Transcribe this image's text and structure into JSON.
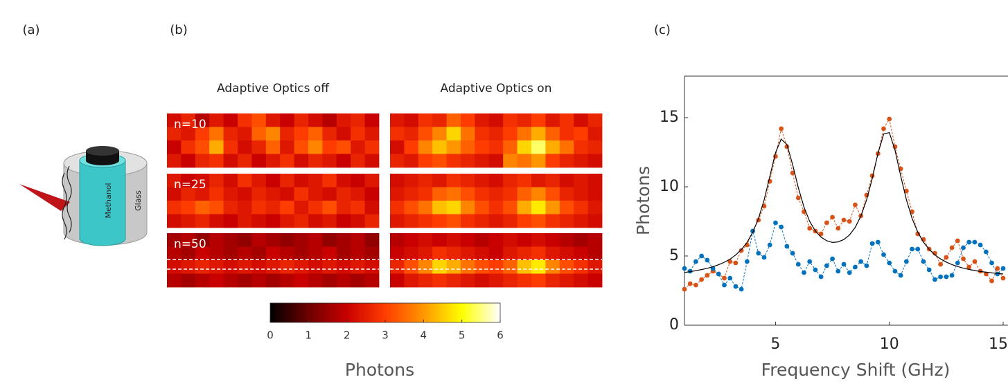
{
  "figure": {
    "panel_a": {
      "label": "(a)",
      "liquid_label": "Methanol",
      "vessel_label": "Glass"
    }
  },
  "chart_data": [
    {
      "type": "heatmap",
      "panel_label": "(b)",
      "columns": [
        "Adaptive Optics off",
        "Adaptive Optics on"
      ],
      "rows": [
        "n=10",
        "n=25",
        "n=50"
      ],
      "grids": [
        [
          [
            [
              2.2,
              2.6,
              1.8,
              2.4,
              2.0,
              2.8,
              3.2,
              2.4,
              2.0,
              2.6,
              2.2,
              1.8,
              2.4,
              2.6,
              2.0
            ],
            [
              2.6,
              2.4,
              3.0,
              3.6,
              2.6,
              2.4,
              3.4,
              3.8,
              2.6,
              3.0,
              3.4,
              2.6,
              2.2,
              2.8,
              2.4
            ],
            [
              2.0,
              2.8,
              3.2,
              4.2,
              2.8,
              2.2,
              2.6,
              3.4,
              2.4,
              3.2,
              3.8,
              3.0,
              3.2,
              2.4,
              2.8
            ],
            [
              2.4,
              2.0,
              2.6,
              2.8,
              2.2,
              2.6,
              2.0,
              2.4,
              2.8,
              2.2,
              2.6,
              2.4,
              2.0,
              2.6,
              2.2
            ]
          ],
          [
            [
              2.4,
              2.2,
              2.8,
              2.6,
              3.4,
              3.0,
              2.4,
              2.2,
              2.8,
              2.6,
              3.0,
              2.4,
              2.8,
              2.2,
              2.6
            ],
            [
              2.8,
              2.6,
              3.2,
              3.8,
              4.6,
              3.6,
              2.8,
              2.6,
              3.0,
              3.6,
              4.2,
              3.4,
              2.8,
              3.0,
              2.4
            ],
            [
              2.2,
              3.0,
              3.8,
              4.4,
              4.0,
              3.4,
              3.0,
              2.8,
              3.4,
              4.6,
              5.4,
              4.2,
              3.6,
              2.8,
              2.6
            ],
            [
              2.6,
              2.4,
              3.0,
              3.2,
              2.8,
              2.6,
              2.4,
              2.2,
              3.8,
              3.6,
              4.0,
              3.0,
              2.6,
              2.4,
              2.2
            ]
          ]
        ],
        [
          [
            [
              2.4,
              2.0,
              2.2,
              2.6,
              2.2,
              2.8,
              2.4,
              2.0,
              2.6,
              2.2,
              2.4,
              2.8,
              2.2,
              2.0,
              2.4
            ],
            [
              2.2,
              2.6,
              2.4,
              2.8,
              2.4,
              2.2,
              2.6,
              2.4,
              2.2,
              2.8,
              2.4,
              2.2,
              2.6,
              2.4,
              2.0
            ],
            [
              2.8,
              3.0,
              3.4,
              3.2,
              2.6,
              2.4,
              2.8,
              2.6,
              3.0,
              2.4,
              2.8,
              3.2,
              2.6,
              2.8,
              2.2
            ],
            [
              2.2,
              2.4,
              2.6,
              2.2,
              2.0,
              2.4,
              2.2,
              2.0,
              2.4,
              2.6,
              2.2,
              2.4,
              2.0,
              2.2,
              2.6
            ]
          ],
          [
            [
              2.2,
              2.4,
              2.6,
              2.4,
              2.8,
              2.6,
              2.4,
              2.2,
              2.6,
              2.8,
              2.4,
              2.6,
              2.2,
              2.4,
              2.2
            ],
            [
              2.4,
              2.6,
              2.8,
              3.4,
              3.6,
              3.2,
              2.8,
              2.6,
              2.8,
              3.4,
              3.8,
              3.2,
              2.6,
              2.4,
              2.2
            ],
            [
              2.8,
              3.2,
              3.6,
              4.4,
              4.6,
              3.8,
              3.2,
              2.8,
              3.2,
              4.2,
              4.8,
              4.0,
              3.2,
              2.8,
              2.4
            ],
            [
              2.4,
              2.6,
              2.8,
              3.0,
              3.2,
              2.8,
              2.6,
              2.4,
              2.6,
              3.0,
              3.2,
              2.8,
              2.6,
              2.4,
              2.2
            ]
          ]
        ],
        [
          [
            [
              1.6,
              1.8,
              1.4,
              1.8,
              1.6,
              1.4,
              1.8,
              1.6,
              1.4,
              1.6,
              1.8,
              1.4,
              1.6,
              1.8,
              1.4
            ],
            [
              1.8,
              1.6,
              2.0,
              1.8,
              1.6,
              1.8,
              1.6,
              2.0,
              1.8,
              1.6,
              1.8,
              2.0,
              1.6,
              1.8,
              1.6
            ],
            [
              2.2,
              2.4,
              2.6,
              2.4,
              2.2,
              2.4,
              2.2,
              2.4,
              2.6,
              2.4,
              2.2,
              2.4,
              2.2,
              2.4,
              2.2
            ],
            [
              1.8,
              1.6,
              1.8,
              2.0,
              1.8,
              1.6,
              1.8,
              1.6,
              1.8,
              2.0,
              1.8,
              1.6,
              1.8,
              1.6,
              1.8
            ]
          ],
          [
            [
              1.8,
              2.0,
              2.2,
              2.0,
              2.2,
              2.0,
              1.8,
              2.0,
              2.2,
              2.0,
              2.2,
              2.0,
              1.8,
              1.6,
              1.8
            ],
            [
              2.0,
              2.2,
              2.4,
              2.8,
              2.6,
              2.4,
              2.2,
              2.0,
              2.4,
              2.6,
              2.8,
              2.4,
              2.2,
              2.0,
              1.8
            ],
            [
              2.6,
              3.2,
              3.8,
              4.6,
              4.2,
              3.6,
              3.2,
              3.0,
              3.4,
              4.4,
              4.8,
              3.8,
              3.2,
              2.8,
              2.4
            ],
            [
              2.0,
              2.4,
              2.6,
              2.8,
              2.6,
              2.4,
              2.2,
              2.4,
              2.6,
              2.8,
              3.0,
              2.6,
              2.4,
              2.2,
              2.0
            ]
          ]
        ]
      ],
      "colormap": [
        "#000000",
        "#6e0000",
        "#c80000",
        "#ff3c00",
        "#ff9600",
        "#ffff00",
        "#ffffff"
      ],
      "clim": [
        0,
        6
      ],
      "colorbar_ticks": [
        0,
        1,
        2,
        3,
        4,
        5,
        6
      ],
      "colorbar_label": "Photons"
    },
    {
      "type": "line",
      "panel_label": "(c)",
      "xlabel": "Frequency Shift (GHz)",
      "ylabel": "Photons",
      "xlim": [
        1,
        15
      ],
      "ylim": [
        0,
        18
      ],
      "xticks": [
        5,
        10,
        15
      ],
      "yticks": [
        0,
        5,
        10,
        15
      ],
      "x": [
        1,
        1.25,
        1.5,
        1.75,
        2,
        2.25,
        2.5,
        2.75,
        3,
        3.25,
        3.5,
        3.75,
        4,
        4.25,
        4.5,
        4.75,
        5,
        5.25,
        5.5,
        5.75,
        6,
        6.25,
        6.5,
        6.75,
        7,
        7.25,
        7.5,
        7.75,
        8,
        8.25,
        8.5,
        8.75,
        9,
        9.25,
        9.5,
        9.75,
        10,
        10.25,
        10.5,
        10.75,
        11,
        11.25,
        11.5,
        11.75,
        12,
        12.25,
        12.5,
        12.75,
        13,
        13.25,
        13.5,
        13.75,
        14,
        14.25,
        14.5,
        14.75,
        15
      ],
      "series": [
        {
          "color": "#d95319",
          "markers": true,
          "dashed": true,
          "values": [
            2.6,
            3.0,
            2.9,
            3.3,
            3.6,
            3.9,
            3.7,
            3.4,
            4.6,
            4.5,
            5.4,
            5.8,
            6.8,
            7.6,
            8.6,
            10.4,
            12.2,
            14.2,
            12.9,
            11.0,
            9.2,
            8.2,
            7.0,
            6.8,
            6.6,
            7.4,
            7.8,
            7.0,
            7.6,
            7.5,
            8.7,
            7.9,
            9.4,
            10.8,
            12.4,
            14.2,
            14.9,
            12.9,
            11.3,
            9.7,
            8.2,
            6.6,
            6.2,
            5.5,
            5.2,
            4.4,
            4.9,
            5.6,
            6.1,
            4.8,
            4.2,
            4.6,
            3.9,
            3.7,
            3.2,
            4.1,
            3.4
          ]
        },
        {
          "color": "#0072bd",
          "markers": true,
          "dashed": true,
          "values": [
            4.1,
            3.9,
            4.6,
            5.0,
            4.7,
            4.1,
            3.7,
            2.9,
            3.4,
            2.8,
            2.6,
            4.6,
            6.8,
            5.2,
            4.9,
            5.8,
            7.4,
            7.1,
            5.7,
            5.2,
            4.4,
            3.8,
            4.6,
            4.0,
            3.5,
            4.3,
            4.8,
            3.9,
            4.4,
            3.8,
            4.2,
            4.6,
            4.3,
            5.9,
            6.0,
            5.1,
            4.5,
            3.9,
            3.6,
            4.6,
            5.5,
            5.5,
            4.6,
            4.0,
            3.3,
            3.5,
            3.5,
            3.6,
            4.5,
            5.6,
            6.0,
            6.0,
            5.8,
            5.3,
            4.5,
            3.7,
            4.1
          ]
        },
        {
          "color": "#000000",
          "markers": false,
          "dashed": false,
          "values": [
            3.81,
            3.87,
            3.94,
            4.02,
            4.11,
            4.23,
            4.37,
            4.55,
            4.77,
            5.07,
            5.46,
            5.99,
            6.72,
            7.71,
            9.05,
            10.75,
            12.46,
            13.45,
            13.06,
            11.61,
            9.94,
            8.54,
            7.51,
            6.81,
            6.36,
            6.1,
            5.98,
            6.02,
            6.19,
            6.52,
            7.06,
            7.88,
            9.05,
            10.61,
            12.41,
            13.81,
            13.92,
            12.65,
            10.79,
            9.06,
            7.71,
            6.72,
            6.0,
            5.48,
            5.08,
            4.79,
            4.56,
            4.38,
            4.24,
            4.12,
            4.03,
            3.95,
            3.88,
            3.83,
            3.78,
            3.74,
            3.7
          ]
        }
      ]
    }
  ]
}
